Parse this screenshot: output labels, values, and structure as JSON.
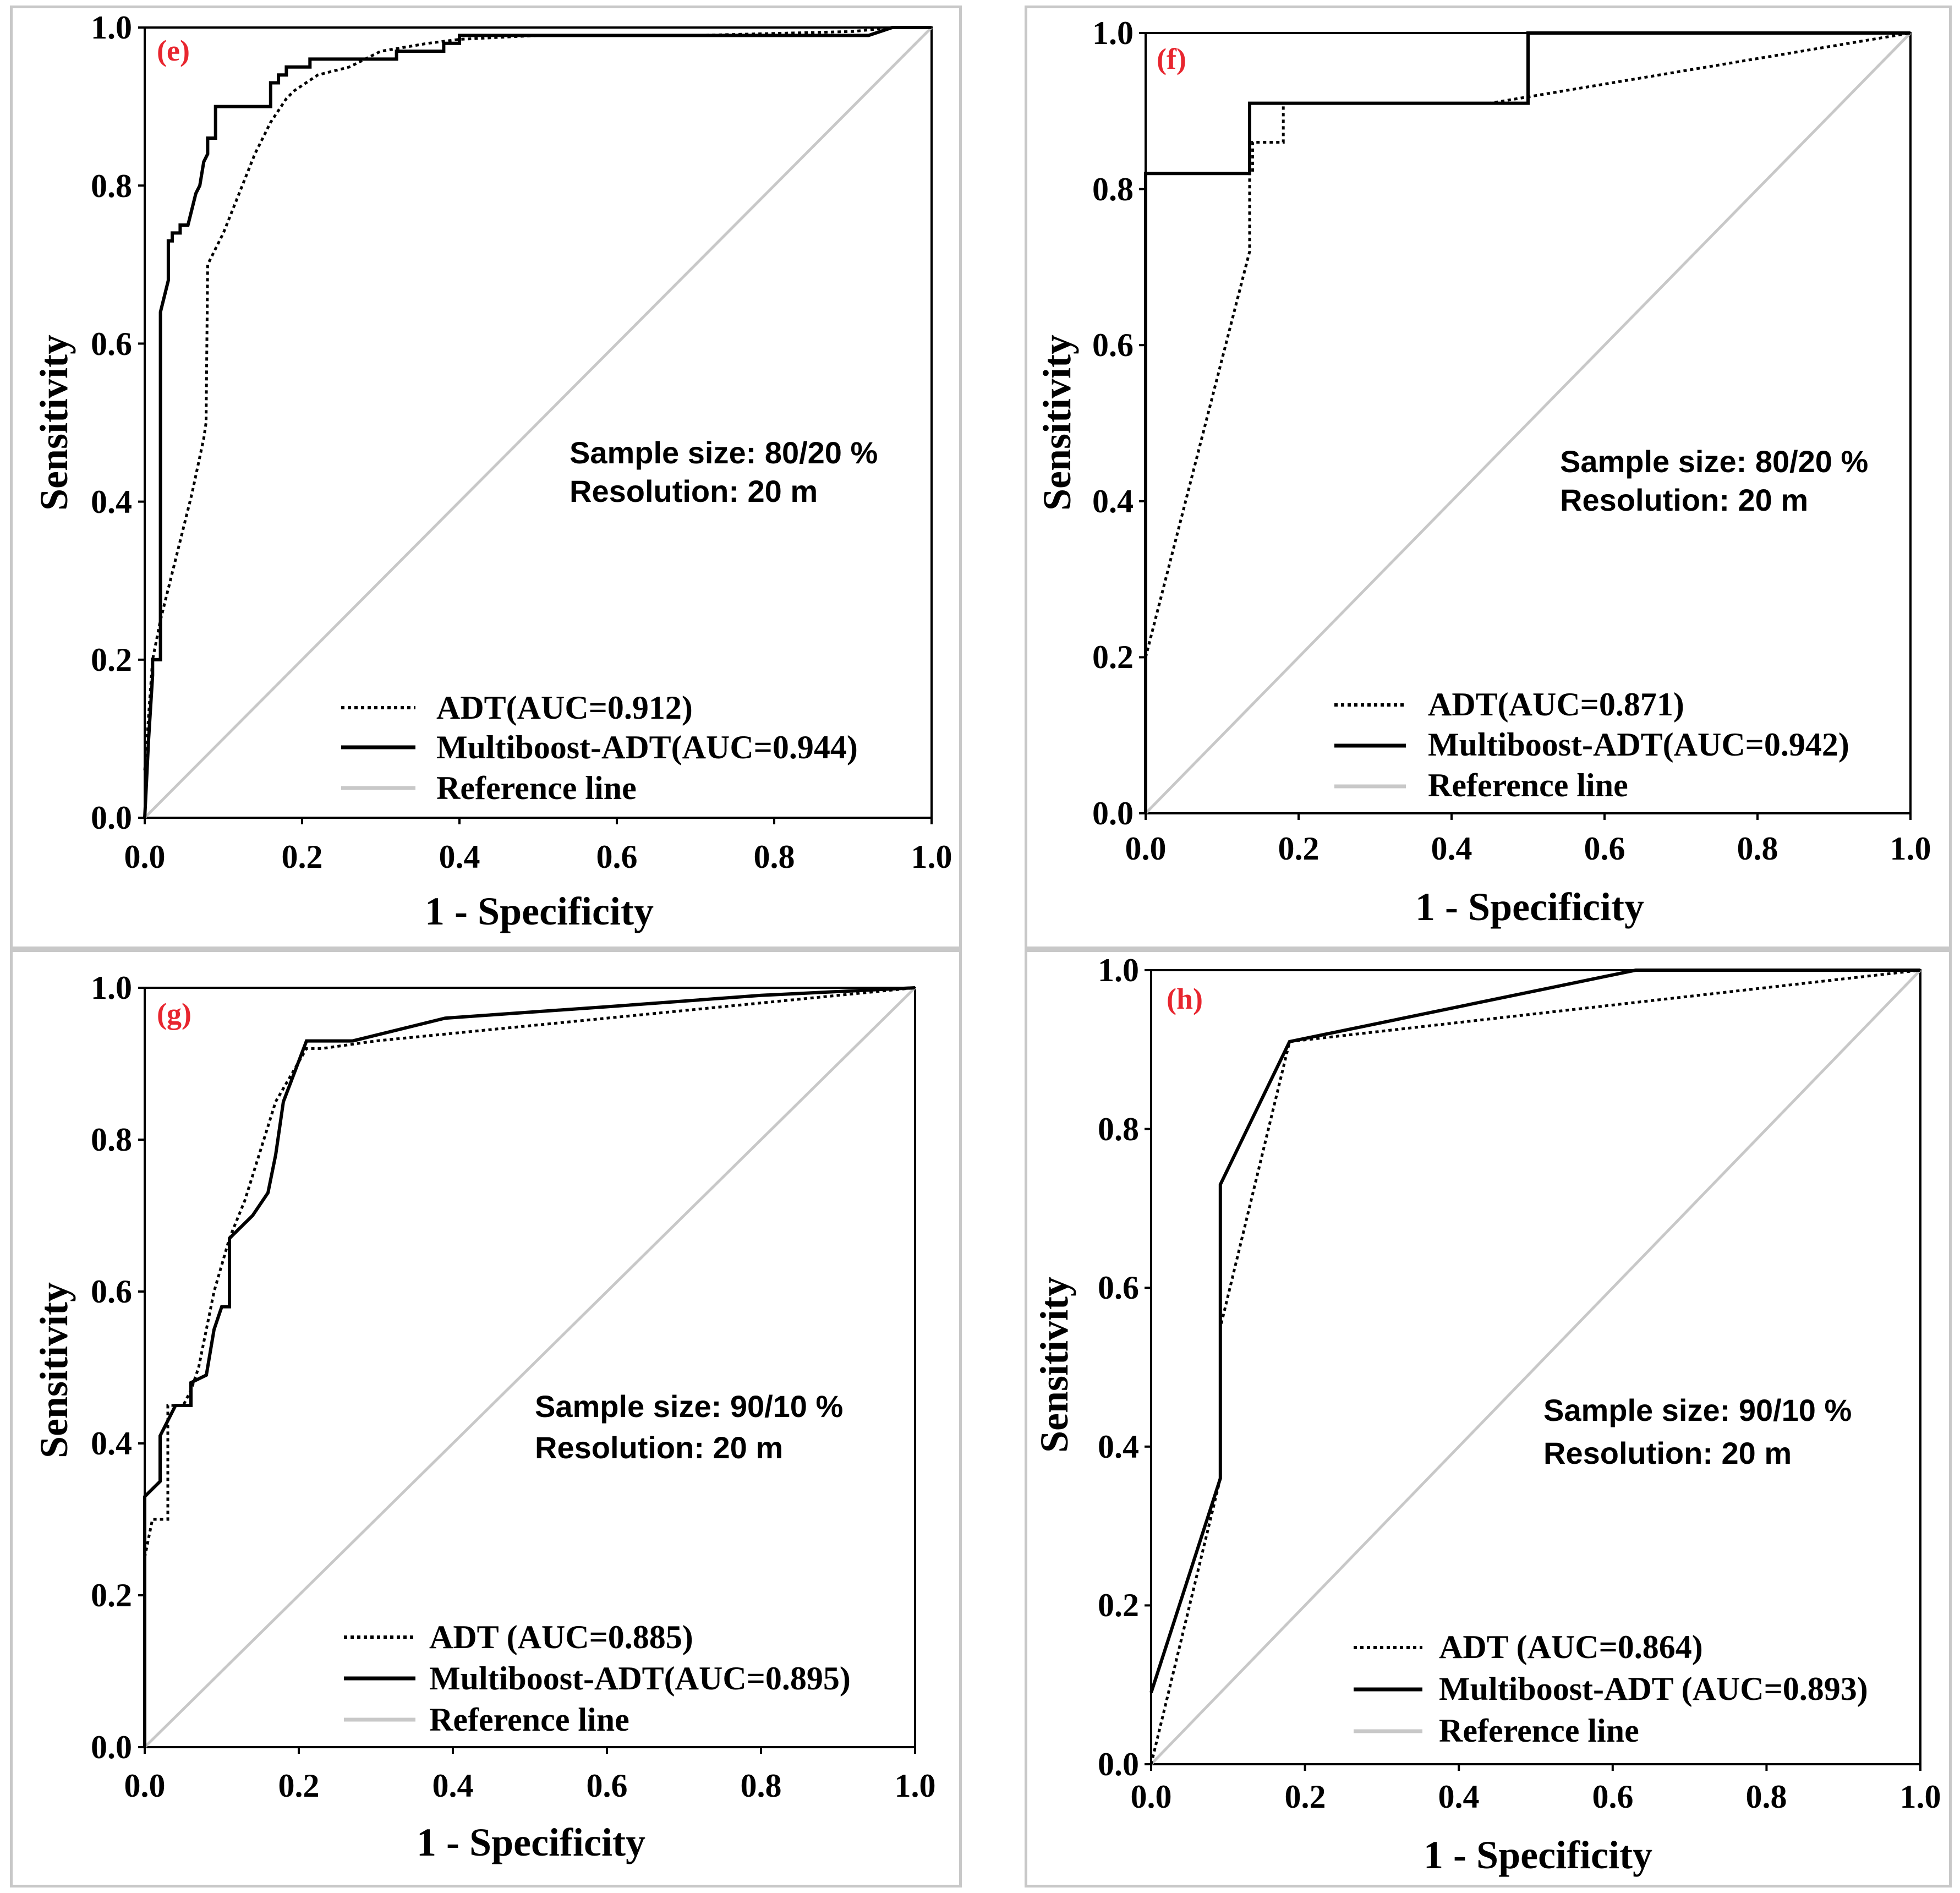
{
  "chart_data": [
    {
      "type": "line",
      "panel_label": "(e)",
      "xlabel": "1 - Specificity",
      "ylabel": "Sensitivity",
      "xlim": [
        0,
        1
      ],
      "ylim": [
        0,
        1
      ],
      "xticks": [
        "0.0",
        "0.2",
        "0.4",
        "0.6",
        "0.8",
        "1.0"
      ],
      "yticks": [
        "0.0",
        "0.2",
        "0.4",
        "0.6",
        "0.8",
        "1.0"
      ],
      "annotation": [
        "Sample size: 80/20 %",
        "Resolution: 20 m"
      ],
      "legend": [
        "ADT(AUC=0.912)",
        "Multiboost-ADT(AUC=0.944)",
        "Reference line"
      ],
      "series": [
        {
          "name": "ADT",
          "style": "dotted",
          "x": [
            0,
            0.01,
            0.02,
            0.04,
            0.06,
            0.075,
            0.078,
            0.08,
            0.085,
            0.09,
            0.1,
            0.12,
            0.14,
            0.16,
            0.18,
            0.19,
            0.22,
            0.26,
            0.3,
            0.36,
            0.4,
            0.5,
            0.7,
            0.9,
            0.95,
            1.0
          ],
          "y": [
            0.06,
            0.2,
            0.25,
            0.33,
            0.41,
            0.48,
            0.5,
            0.7,
            0.71,
            0.72,
            0.74,
            0.79,
            0.84,
            0.88,
            0.91,
            0.92,
            0.94,
            0.95,
            0.97,
            0.98,
            0.985,
            0.99,
            0.99,
            0.995,
            1.0,
            1.0
          ]
        },
        {
          "name": "Multiboost-ADT",
          "style": "solid",
          "x": [
            0,
            0.005,
            0.01,
            0.01,
            0.02,
            0.02,
            0.03,
            0.03,
            0.035,
            0.035,
            0.045,
            0.045,
            0.055,
            0.065,
            0.07,
            0.075,
            0.08,
            0.08,
            0.09,
            0.09,
            0.16,
            0.16,
            0.17,
            0.17,
            0.18,
            0.18,
            0.21,
            0.21,
            0.32,
            0.32,
            0.38,
            0.38,
            0.4,
            0.4,
            0.92,
            0.95,
            1.0
          ],
          "y": [
            0,
            0.1,
            0.18,
            0.2,
            0.2,
            0.64,
            0.68,
            0.73,
            0.73,
            0.74,
            0.74,
            0.75,
            0.75,
            0.79,
            0.8,
            0.83,
            0.84,
            0.86,
            0.86,
            0.9,
            0.9,
            0.93,
            0.93,
            0.94,
            0.94,
            0.95,
            0.95,
            0.96,
            0.96,
            0.97,
            0.97,
            0.98,
            0.98,
            0.99,
            0.99,
            1.0,
            1.0
          ]
        }
      ]
    },
    {
      "type": "line",
      "panel_label": "(f)",
      "xlabel": "1 - Specificity",
      "ylabel": "Sensitivity",
      "xlim": [
        0,
        1
      ],
      "ylim": [
        0,
        1
      ],
      "xticks": [
        "0.0",
        "0.2",
        "0.4",
        "0.6",
        "0.8",
        "1.0"
      ],
      "yticks": [
        "0.0",
        "0.2",
        "0.4",
        "0.6",
        "0.8",
        "1.0"
      ],
      "annotation": [
        "Sample size: 80/20 %",
        "Resolution: 20 m"
      ],
      "legend": [
        "ADT(AUC=0.871)",
        "Multiboost-ADT(AUC=0.942)",
        "Reference line"
      ],
      "series": [
        {
          "name": "ADT",
          "style": "dotted",
          "x": [
            0,
            0.136,
            0.136,
            0.14,
            0.14,
            0.18,
            0.18,
            0.45,
            1.0
          ],
          "y": [
            0.2,
            0.72,
            0.82,
            0.82,
            0.86,
            0.86,
            0.91,
            0.91,
            1.0
          ]
        },
        {
          "name": "Multiboost-ADT",
          "style": "solid",
          "x": [
            0,
            0,
            0.136,
            0.136,
            0.5,
            0.5,
            1.0
          ],
          "y": [
            0,
            0.82,
            0.82,
            0.91,
            0.91,
            1.0,
            1.0
          ]
        }
      ]
    },
    {
      "type": "line",
      "panel_label": "(g)",
      "xlabel": "1 - Specificity",
      "ylabel": "Sensitivity",
      "xlim": [
        0,
        1
      ],
      "ylim": [
        0,
        1
      ],
      "xticks": [
        "0.0",
        "0.2",
        "0.4",
        "0.6",
        "0.8",
        "1.0"
      ],
      "yticks": [
        "0.0",
        "0.2",
        "0.4",
        "0.6",
        "0.8",
        "1.0"
      ],
      "annotation": [
        "Sample size: 90/10 %",
        "Resolution: 20 m"
      ],
      "legend": [
        "ADT (AUC=0.885)",
        "Multiboost-ADT(AUC=0.895)",
        "Reference line"
      ],
      "series": [
        {
          "name": "ADT",
          "style": "dotted",
          "x": [
            0,
            0.01,
            0.01,
            0.03,
            0.03,
            0.05,
            0.06,
            0.07,
            0.09,
            0.11,
            0.13,
            0.17,
            0.21,
            0.23,
            0.3,
            0.5,
            0.7,
            1.0
          ],
          "y": [
            0.25,
            0.3,
            0.3,
            0.3,
            0.45,
            0.45,
            0.47,
            0.5,
            0.6,
            0.67,
            0.72,
            0.85,
            0.92,
            0.92,
            0.93,
            0.95,
            0.97,
            1.0
          ]
        },
        {
          "name": "Multiboost-ADT",
          "style": "solid",
          "x": [
            0,
            0,
            0.01,
            0.02,
            0.02,
            0.03,
            0.04,
            0.06,
            0.06,
            0.08,
            0.09,
            0.1,
            0.11,
            0.11,
            0.14,
            0.16,
            0.17,
            0.18,
            0.21,
            0.27,
            0.39,
            0.6,
            0.8,
            1.0
          ],
          "y": [
            0,
            0.33,
            0.34,
            0.35,
            0.41,
            0.43,
            0.45,
            0.45,
            0.48,
            0.49,
            0.55,
            0.58,
            0.58,
            0.67,
            0.7,
            0.73,
            0.78,
            0.85,
            0.93,
            0.93,
            0.96,
            0.975,
            0.99,
            1.0
          ]
        }
      ]
    },
    {
      "type": "line",
      "panel_label": "(h)",
      "xlabel": "1 - Specificity",
      "ylabel": "Sensitivity",
      "xlim": [
        0,
        1
      ],
      "ylim": [
        0,
        1
      ],
      "xticks": [
        "0.0",
        "0.2",
        "0.4",
        "0.6",
        "0.8",
        "1.0"
      ],
      "yticks": [
        "0.0",
        "0.2",
        "0.4",
        "0.6",
        "0.8",
        "1.0"
      ],
      "annotation": [
        "Sample size: 90/10 %",
        "Resolution: 20 m"
      ],
      "legend": [
        "ADT (AUC=0.864)",
        "Multiboost-ADT (AUC=0.893)",
        "Reference line"
      ],
      "series": [
        {
          "name": "ADT",
          "style": "dotted",
          "x": [
            0,
            0.09,
            0.09,
            0.18,
            1.0
          ],
          "y": [
            0,
            0.36,
            0.55,
            0.91,
            1.0
          ]
        },
        {
          "name": "Multiboost-ADT",
          "style": "solid",
          "x": [
            0,
            0.09,
            0.09,
            0.18,
            0.63,
            1.0
          ],
          "y": [
            0.09,
            0.36,
            0.73,
            0.91,
            1.0,
            1.0
          ]
        }
      ]
    }
  ],
  "colors": {
    "curve": "#000000",
    "reference": "#c8c8c8",
    "panel_label": "#e8262f",
    "frame": "#c8c8c8"
  }
}
